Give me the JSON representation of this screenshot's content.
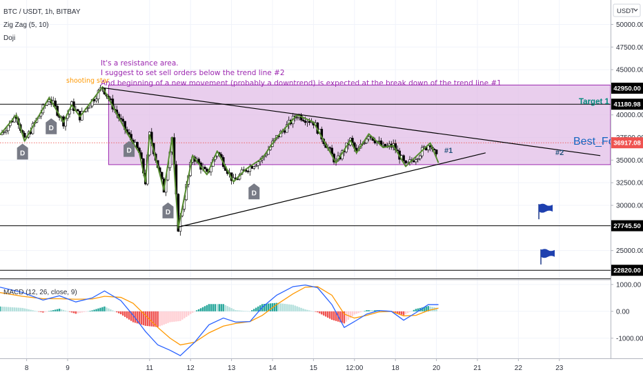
{
  "header": {
    "symbol": "BTC / USDT, 1h, BITBAY",
    "indicators": [
      "Zig Zag (5, 10)",
      "Doji"
    ],
    "currency": "USDT"
  },
  "annotations": {
    "note_lines": [
      "It's a resistance area.",
      "I suggest to set sell orders below the trend line #2",
      "And beginning of a new movement (probably a downtrend) is expected at the break down of the trend line #1"
    ],
    "shooting_star": "shooting star",
    "target": "Target 1",
    "trendline_1": "#1",
    "trendline_2": "#2",
    "watermark": "Best_Fo",
    "doji_label": "D"
  },
  "price_levels": [
    {
      "value": "42950.00",
      "price": 42950
    },
    {
      "value": "41180.98",
      "price": 41180.98
    },
    {
      "value": "36917.08",
      "price": 36917.08,
      "current": true
    },
    {
      "value": "27745.50",
      "price": 27745.5
    },
    {
      "value": "22820.00",
      "price": 22820
    }
  ],
  "chart_data": [
    {
      "type": "line",
      "subtype": "candlestick",
      "title": "BTC / USDT, 1h, BITBAY",
      "y_ticks": [
        "50000.00",
        "47500.00",
        "45000.00",
        "40000.00",
        "37500.00",
        "35000.00",
        "32500.00",
        "30000.00",
        "25000.00"
      ],
      "y_tick_values": [
        50000,
        47500,
        45000,
        40000,
        37500,
        35000,
        32500,
        30000,
        25000
      ],
      "ylim": [
        22000,
        52700
      ],
      "x_ticks": [
        "8",
        "9",
        "11",
        "12",
        "13",
        "14",
        "15",
        "12:00",
        "18",
        "20",
        "21",
        "22",
        "23"
      ],
      "x_tick_values": [
        0.5,
        1.5,
        3.5,
        4.5,
        5.5,
        6.5,
        7.5,
        8.5,
        9.5,
        10.5,
        11.5,
        12.5,
        13.5
      ],
      "xlim": [
        -0.15,
        14.75
      ],
      "zigzag": [
        {
          "x": -0.15,
          "y": 37800
        },
        {
          "x": 0.25,
          "y": 40000
        },
        {
          "x": 0.45,
          "y": 37100
        },
        {
          "x": 1.05,
          "y": 41900
        },
        {
          "x": 1.4,
          "y": 39200
        },
        {
          "x": 1.6,
          "y": 41100
        },
        {
          "x": 1.8,
          "y": 39800
        },
        {
          "x": 2.35,
          "y": 43100
        },
        {
          "x": 2.95,
          "y": 38000
        },
        {
          "x": 3.25,
          "y": 35800
        },
        {
          "x": 3.4,
          "y": 32600
        },
        {
          "x": 3.5,
          "y": 37800
        },
        {
          "x": 3.85,
          "y": 31700
        },
        {
          "x": 4.05,
          "y": 37500
        },
        {
          "x": 4.2,
          "y": 27500
        },
        {
          "x": 4.55,
          "y": 35500
        },
        {
          "x": 4.9,
          "y": 33400
        },
        {
          "x": 5.15,
          "y": 36000
        },
        {
          "x": 5.55,
          "y": 32600
        },
        {
          "x": 5.85,
          "y": 34000
        },
        {
          "x": 6.25,
          "y": 35200
        },
        {
          "x": 6.6,
          "y": 37500
        },
        {
          "x": 7.1,
          "y": 40000
        },
        {
          "x": 7.5,
          "y": 39200
        },
        {
          "x": 8.05,
          "y": 34700
        },
        {
          "x": 8.4,
          "y": 37200
        },
        {
          "x": 8.55,
          "y": 35800
        },
        {
          "x": 8.85,
          "y": 37900
        },
        {
          "x": 9.2,
          "y": 36400
        },
        {
          "x": 9.45,
          "y": 36600
        },
        {
          "x": 9.75,
          "y": 34300
        },
        {
          "x": 10.35,
          "y": 36900
        },
        {
          "x": 10.55,
          "y": 34700
        }
      ],
      "trendlines": [
        {
          "name": "#1",
          "from": {
            "x": 4.2,
            "y": 27600
          },
          "to": {
            "x": 11.7,
            "y": 35800
          }
        },
        {
          "name": "#2",
          "from": {
            "x": 2.35,
            "y": 43000
          },
          "to": {
            "x": 14.5,
            "y": 35500
          }
        }
      ],
      "resistance_zone": {
        "x_from": 2.5,
        "x_to": 14.8,
        "y_from": 34500,
        "y_to": 43300
      },
      "horizontal_lines": [
        41180.98,
        27745.5,
        22820
      ],
      "doji_markers": [
        {
          "x": 1.1,
          "y": 38700,
          "side": "above"
        },
        {
          "x": 0.4,
          "y": 35900,
          "side": "below"
        },
        {
          "x": 3.0,
          "y": 36200,
          "side": "below"
        },
        {
          "x": 3.95,
          "y": 29400,
          "side": "above"
        },
        {
          "x": 6.05,
          "y": 31500,
          "side": "above"
        }
      ],
      "flags": [
        {
          "x": 13.0,
          "y": 29300
        },
        {
          "x": 13.05,
          "y": 24300
        }
      ]
    },
    {
      "type": "line",
      "title": "MACD (12, 26, close, 9)",
      "y_ticks": [
        "1000.00",
        "0.00",
        "-1000.00"
      ],
      "y_tick_values": [
        1000,
        0,
        -1000
      ],
      "ylim": [
        -1750,
        1150
      ],
      "series": [
        {
          "name": "MACD",
          "color": "#2962ff"
        },
        {
          "name": "Signal",
          "color": "#ff9800"
        },
        {
          "name": "Histogram",
          "colors": [
            "#26a69a",
            "#b2dfdb",
            "#ef5350",
            "#ffcdd2"
          ]
        }
      ],
      "macd_points": [
        [
          -0.15,
          900
        ],
        [
          0.4,
          700
        ],
        [
          0.9,
          420
        ],
        [
          1.3,
          580
        ],
        [
          1.7,
          350
        ],
        [
          2.1,
          500
        ],
        [
          2.4,
          760
        ],
        [
          2.8,
          400
        ],
        [
          3.1,
          -150
        ],
        [
          3.4,
          -750
        ],
        [
          3.7,
          -1250
        ],
        [
          4.0,
          -1450
        ],
        [
          4.25,
          -1650
        ],
        [
          4.6,
          -1150
        ],
        [
          4.95,
          -500
        ],
        [
          5.3,
          -250
        ],
        [
          5.6,
          -400
        ],
        [
          5.95,
          -380
        ],
        [
          6.25,
          150
        ],
        [
          6.6,
          600
        ],
        [
          7.0,
          920
        ],
        [
          7.3,
          980
        ],
        [
          7.6,
          880
        ],
        [
          7.95,
          250
        ],
        [
          8.25,
          -600
        ],
        [
          8.5,
          -380
        ],
        [
          8.8,
          -100
        ],
        [
          9.1,
          30
        ],
        [
          9.4,
          0
        ],
        [
          9.7,
          -330
        ],
        [
          10.0,
          -50
        ],
        [
          10.3,
          250
        ],
        [
          10.55,
          250
        ]
      ],
      "signal_points": [
        [
          -0.15,
          700
        ],
        [
          0.4,
          560
        ],
        [
          0.9,
          470
        ],
        [
          1.3,
          470
        ],
        [
          1.7,
          450
        ],
        [
          2.1,
          460
        ],
        [
          2.4,
          560
        ],
        [
          2.8,
          520
        ],
        [
          3.1,
          300
        ],
        [
          3.4,
          -150
        ],
        [
          3.7,
          -600
        ],
        [
          4.0,
          -1000
        ],
        [
          4.25,
          -1250
        ],
        [
          4.6,
          -1150
        ],
        [
          4.95,
          -800
        ],
        [
          5.3,
          -550
        ],
        [
          5.6,
          -450
        ],
        [
          5.95,
          -380
        ],
        [
          6.25,
          -150
        ],
        [
          6.6,
          250
        ],
        [
          7.0,
          650
        ],
        [
          7.3,
          900
        ],
        [
          7.6,
          920
        ],
        [
          7.95,
          600
        ],
        [
          8.25,
          -100
        ],
        [
          8.5,
          -250
        ],
        [
          8.8,
          -150
        ],
        [
          9.1,
          -20
        ],
        [
          9.4,
          0
        ],
        [
          9.7,
          -170
        ],
        [
          10.0,
          -150
        ],
        [
          10.3,
          30
        ],
        [
          10.55,
          120
        ]
      ]
    }
  ]
}
